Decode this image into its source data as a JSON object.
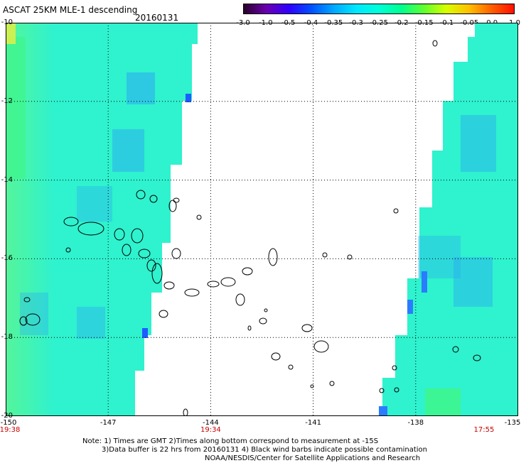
{
  "header": {
    "title": "ASCAT 25KM MLE-1 descending",
    "date": "20160131"
  },
  "colorbar": {
    "ticks": [
      "-3.0",
      "-1.0",
      "-0.5",
      "-0.4",
      "-0.35",
      "-0.3",
      "-0.25",
      "-0.2",
      "-0.15",
      "-0.1",
      "-0.05",
      "0.0",
      "1.0"
    ],
    "colors": [
      "#2a002a",
      "#6a00b0",
      "#3000ff",
      "#0050ff",
      "#00a8ff",
      "#00e8ff",
      "#00ffd8",
      "#00ff90",
      "#60ff30",
      "#d8ff00",
      "#ffc000",
      "#ff6000",
      "#ff1000"
    ]
  },
  "map": {
    "lat_labels": [
      "-10",
      "-12",
      "-14",
      "-16",
      "-18",
      "-20"
    ],
    "lon_labels": [
      "-150",
      "-147",
      "-144",
      "-141",
      "-138",
      "-135"
    ],
    "time_labels": [
      {
        "text": "19:38",
        "lon": "-150"
      },
      {
        "text": "19:34",
        "lon": "-144"
      },
      {
        "text": "17:55",
        "lon": "-136"
      }
    ],
    "colors": {
      "swath_base": "#2ff2ce",
      "swath_blue": "#2ba8f2",
      "swath_green": "#3ef58e",
      "coast": "#000000",
      "grid": "#000000",
      "time_label": "#c80000"
    }
  },
  "notes": {
    "line1": "Note: 1) Times are GMT 2)Times along bottom correspond to measurement at -15S",
    "line2": "3)Data buffer is 22 hrs from 20160131 4) Black wind barbs indicate possible contamination",
    "line3": "NOAA/NESDIS/Center for Satellite Applications and Research"
  }
}
